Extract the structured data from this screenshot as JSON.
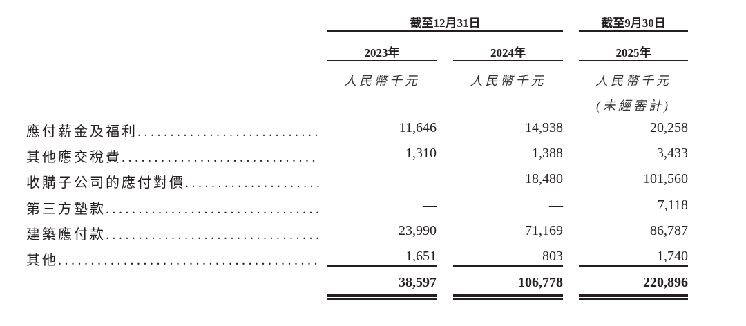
{
  "header": {
    "period_group_1": "截至12月31日",
    "period_group_2": "截至9月30日",
    "years": [
      "2023年",
      "2024年",
      "2025年"
    ],
    "units": [
      "人民幣千元",
      "人民幣千元",
      "人民幣千元"
    ],
    "unaudited_note": "(未經審計)"
  },
  "rows": [
    {
      "label": "應付薪金及福利",
      "values": [
        "11,646",
        "14,938",
        "20,258"
      ]
    },
    {
      "label": "其他應交稅費",
      "values": [
        "1,310",
        "1,388",
        "3,433"
      ]
    },
    {
      "label": "收購子公司的應付對價",
      "values": [
        "—",
        "18,480",
        "101,560"
      ]
    },
    {
      "label": "第三方墊款",
      "values": [
        "—",
        "—",
        "7,118"
      ]
    },
    {
      "label": "建築應付款",
      "values": [
        "23,990",
        "71,169",
        "86,787"
      ]
    },
    {
      "label": "其他",
      "values": [
        "1,651",
        "803",
        "1,740"
      ]
    }
  ],
  "total": {
    "values": [
      "38,597",
      "106,778",
      "220,896"
    ]
  },
  "leader_dots": ".............................................................."
}
